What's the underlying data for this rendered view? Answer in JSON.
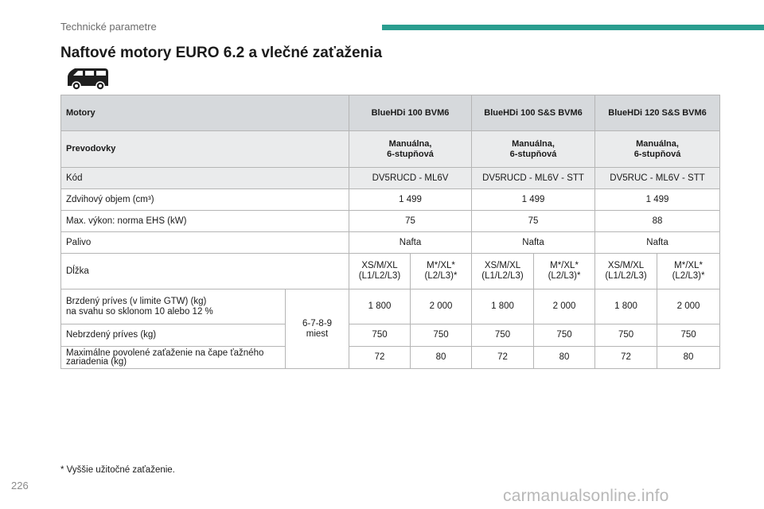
{
  "header": {
    "section": "Technické parametre",
    "accent_color": "#2a9d8f"
  },
  "page_title": "Naftové motory EURO 6.2 a vlečné zaťaženia",
  "vehicle_icon": "van-icon",
  "table": {
    "engines_label": "Motory",
    "engines": [
      "BlueHDi 100 BVM6",
      "BlueHDi 100 S&S BVM6",
      "BlueHDi 120 S&S BVM6"
    ],
    "gearbox_label": "Prevodovky",
    "gearbox_line1": "Manuálna,",
    "gearbox_line2": "6-stupňová",
    "code_label": "Kód",
    "codes": [
      "DV5RUCD - ML6V",
      "DV5RUCD - ML6V - STT",
      "DV5RUC - ML6V - STT"
    ],
    "displacement_label": "Zdvihový objem (cm³)",
    "displacement": [
      "1 499",
      "1 499",
      "1 499"
    ],
    "power_label": "Max. výkon: norma EHS (kW)",
    "power": [
      "75",
      "75",
      "88"
    ],
    "fuel_label": "Palivo",
    "fuel": [
      "Nafta",
      "Nafta",
      "Nafta"
    ],
    "length_label": "Dĺžka",
    "length_a_line1": "XS/M/XL",
    "length_a_line2": "(L1/L2/L3)",
    "length_b_line1": "M*/XL*",
    "length_b_line2": "(L2/L3)*",
    "braked_label_line1": "Brzdený príves (v limite GTW) (kg)",
    "braked_label_line2": "na svahu so sklonom 10 alebo 12 %",
    "seats_line1": "6-7-8-9",
    "seats_line2": "miest",
    "braked": [
      "1 800",
      "2 000",
      "1 800",
      "2 000",
      "1 800",
      "2 000"
    ],
    "unbraked_label": "Nebrzdený príves (kg)",
    "unbraked": [
      "750",
      "750",
      "750",
      "750",
      "750",
      "750"
    ],
    "hitch_label_line1": "Maximálne povolené zaťaženie na čape ťažného",
    "hitch_label_line2": "zariadenia (kg)",
    "hitch": [
      "72",
      "80",
      "72",
      "80",
      "72",
      "80"
    ]
  },
  "footnote": "*  Vyššie užitočné zaťaženie.",
  "page_number": "226",
  "watermark": "carmanualsonline.info"
}
